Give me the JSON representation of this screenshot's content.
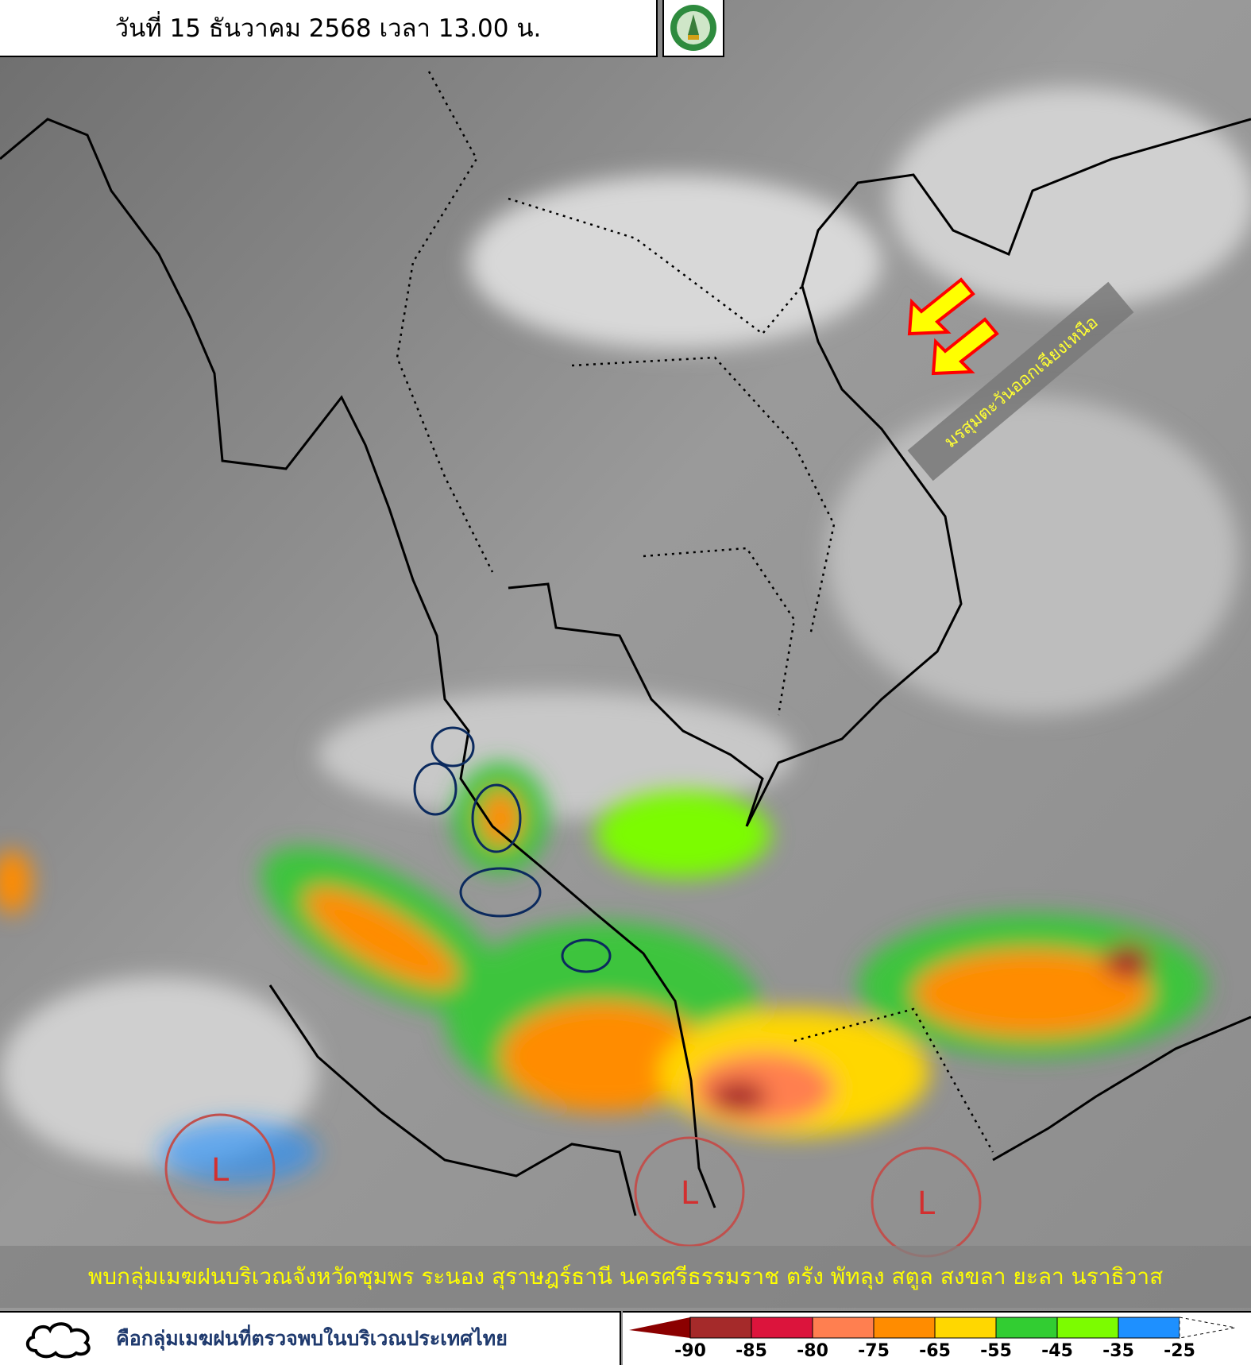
{
  "header": {
    "title": "วันที่ 15 ธันวาคม 2568 เวลา 13.00 น."
  },
  "logo": {
    "name": "tmd-logo",
    "text": "กรมอุตุนิยมวิทยา METEOROLOGICAL DEPARTMENT"
  },
  "map": {
    "monsoon_label": "มรสุมตะวันออกเฉียงเหนือ",
    "arrow_color": "#ffff00",
    "arrow_outline": "#ff0000",
    "low_marker": "L",
    "low_color": "#c0504d",
    "low_count": 3
  },
  "banner": {
    "text": "พบกลุ่มเมฆฝนบริเวณจังหวัดชุมพร ระนอง สุราษฎร์ธานี นครศรีธรรมราช ตรัง พัทลุง สตูล สงขลา ยะลา นราธิวาส"
  },
  "legend": {
    "cloud_icon": "cloud-outline-icon",
    "cloud_caption": "คือกลุ่มเมฆฝนที่ตรวจพบในบริเวณประเทศไทย",
    "colorbar": {
      "ticks": [
        "-90",
        "-85",
        "-80",
        "-75",
        "-65",
        "-55",
        "-45",
        "-35",
        "-25"
      ],
      "colors": [
        "#8b0000",
        "#a52a2a",
        "#dc143c",
        "#ff7f50",
        "#ff8c00",
        "#ffd700",
        "#32cd32",
        "#7cfc00",
        "#1e90ff"
      ]
    }
  }
}
